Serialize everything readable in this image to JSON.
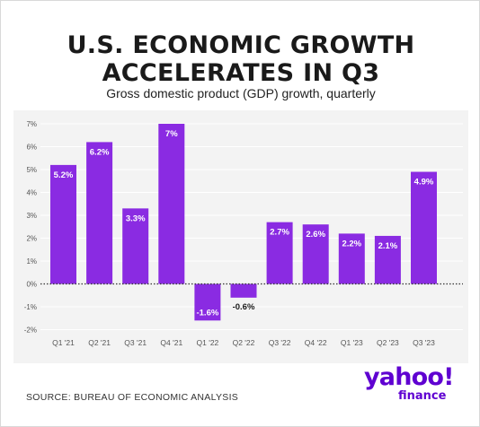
{
  "header": {
    "title_line1": "U.S. ECONOMIC GROWTH",
    "title_line2": "ACCELERATES IN Q3",
    "subtitle": "Gross domestic product (GDP) growth, quarterly"
  },
  "footer": {
    "source": "SOURCE: BUREAU OF ECONOMIC ANALYSIS",
    "logo_main": "yahoo!",
    "logo_sub": "finance"
  },
  "colors": {
    "bar": "#8a2be2",
    "label": "#ffffff",
    "negative_label": "#1a1a1a",
    "grid": "#ffffff",
    "zero_line": "#333333",
    "brand": "#5f01d1"
  },
  "chart_data": {
    "type": "bar",
    "title": "U.S. ECONOMIC GROWTH ACCELERATES IN Q3",
    "subtitle": "Gross domestic product (GDP) growth, quarterly",
    "categories": [
      "Q1 '21",
      "Q2 '21",
      "Q3 '21",
      "Q4 '21",
      "Q1 '22",
      "Q2 '22",
      "Q3 '22",
      "Q4 '22",
      "Q1 '23",
      "Q2 '23",
      "Q3 '23"
    ],
    "values": [
      5.2,
      6.2,
      3.3,
      7,
      -1.6,
      -0.6,
      2.7,
      2.6,
      2.2,
      2.1,
      4.9
    ],
    "value_labels": [
      "5.2%",
      "6.2%",
      "3.3%",
      "7%",
      "-1.6%",
      "-0.6%",
      "2.7%",
      "2.6%",
      "2.2%",
      "2.1%",
      "4.9%"
    ],
    "yticks": [
      7,
      6,
      5,
      4,
      3,
      2,
      1,
      0,
      -1,
      -2
    ],
    "ytick_labels": [
      "7%",
      "6%",
      "5%",
      "4%",
      "3%",
      "2%",
      "1%",
      "0%",
      "-1%",
      "-2%"
    ],
    "ylim": [
      -2,
      7
    ],
    "xlabel": "",
    "ylabel": "",
    "grid": true,
    "legend": "none"
  }
}
